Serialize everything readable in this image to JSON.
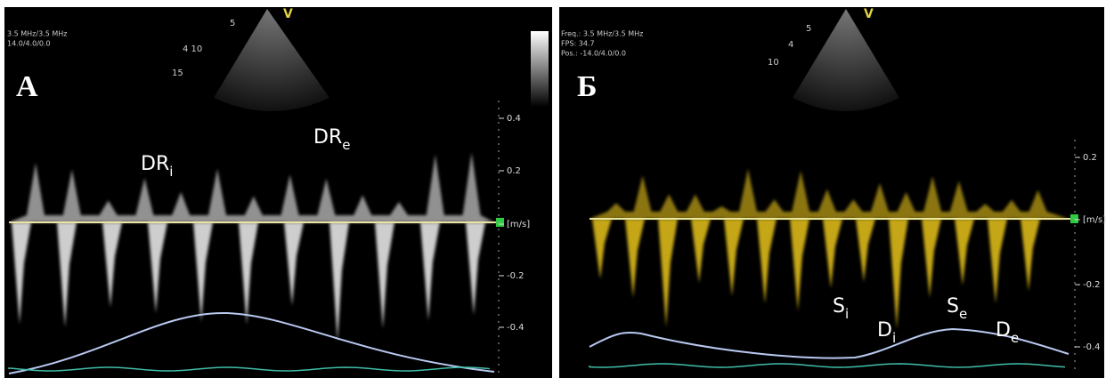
{
  "panels": [
    {
      "label": "А",
      "header": [
        "3.5 MHz/3.5 MHz",
        "14.0/4.0/0.0"
      ],
      "depth_marks": [
        "5",
        "4 10",
        "15",
        "V"
      ],
      "scale_ticks": [
        "0.4",
        "0.2",
        "[m/s]",
        "-0.2",
        "-0.4"
      ],
      "annotations": [
        {
          "text": "DR",
          "sub": "i"
        },
        {
          "text": "DR",
          "sub": "e"
        }
      ]
    },
    {
      "label": "Б",
      "header": [
        "Freq.: 3.5 MHz/3.5 MHz",
        "FPS: 34.7",
        "Pos.: -14.0/4.0/0.0"
      ],
      "depth_marks": [
        "5",
        "4",
        "10",
        "V"
      ],
      "scale_ticks": [
        "0.2",
        "[m/s]",
        "-0.2",
        "-0.4"
      ],
      "annotations": [
        {
          "text": "S",
          "sub": "i"
        },
        {
          "text": "D",
          "sub": "i"
        },
        {
          "text": "S",
          "sub": "e"
        },
        {
          "text": "D",
          "sub": "e"
        }
      ]
    }
  ]
}
